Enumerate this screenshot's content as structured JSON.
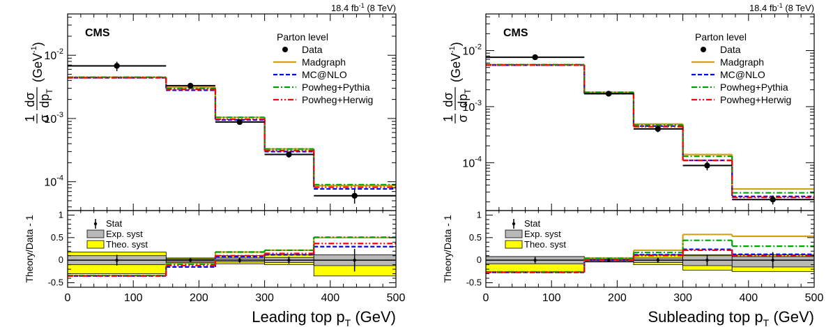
{
  "chart_data": [
    {
      "type": "line",
      "panel": "left",
      "header": "18.4 fb",
      "header_sup": "-1",
      "header_energy": " (8 TeV)",
      "experiment": "CMS",
      "legend_title": "Parton level",
      "ylabel_numerator": "1",
      "ylabel_sigma": "σ",
      "ylabel_dsigma": "dσ",
      "ylabel_dpt": "dp",
      "ylabel_sub": "T",
      "ylabel_units": "(GeV",
      "ylabel_units_sup": "-1",
      "ylabel_units_close": ")",
      "xlabel_main": "Leading top p",
      "xlabel_sub": "T",
      "xlabel_units": " (GeV)",
      "ratio_ylabel": "Theory/Data - 1",
      "yscale": "log",
      "ylim": [
        3.5e-05,
        0.045
      ],
      "xlim": [
        0,
        500
      ],
      "ratio_ylim": [
        -0.6,
        1.1
      ],
      "x_ticks": [
        "0",
        "100",
        "200",
        "300",
        "400",
        "500"
      ],
      "y_ticks": [
        "10^-2",
        "10^-3",
        "10^-4"
      ],
      "ratio_ticks": [
        "-0.5",
        "0",
        "0.5",
        "1"
      ],
      "bin_edges": [
        0,
        150,
        225,
        300,
        375,
        500
      ],
      "data_points": [
        {
          "x": 75,
          "y": 0.0068,
          "yerr_lo": 0.0056,
          "yerr_hi": 0.0079
        },
        {
          "x": 187,
          "y": 0.0033,
          "yerr_lo": 0.003,
          "yerr_hi": 0.0036
        },
        {
          "x": 262,
          "y": 0.00088,
          "yerr_lo": 0.0008,
          "yerr_hi": 0.00097
        },
        {
          "x": 337,
          "y": 0.00027,
          "yerr_lo": 0.00024,
          "yerr_hi": 0.0003
        },
        {
          "x": 437,
          "y": 6e-05,
          "yerr_lo": 4.5e-05,
          "yerr_hi": 7.5e-05
        }
      ],
      "series": [
        {
          "name": "Data",
          "style": "marker",
          "color": "#000000",
          "values": [
            0.0068,
            0.0033,
            0.00088,
            0.00027,
            6e-05
          ]
        },
        {
          "name": "Madgraph",
          "style": "solid",
          "color": "#D4A017",
          "values": [
            0.0045,
            0.0031,
            0.00104,
            0.00033,
            8.7e-05
          ]
        },
        {
          "name": "MC@NLO",
          "style": "dashed",
          "color": "#0000FF",
          "values": [
            0.0044,
            0.0028,
            0.00095,
            0.0003,
            7.7e-05
          ]
        },
        {
          "name": "Powheg+Pythia",
          "style": "dashdot",
          "color": "#00A000",
          "values": [
            0.0045,
            0.003,
            0.00104,
            0.00033,
            9e-05
          ]
        },
        {
          "name": "Powheg+Herwig",
          "style": "dashdotdot",
          "color": "#FF0000",
          "values": [
            0.0044,
            0.0029,
            0.00097,
            0.00031,
            8.2e-05
          ]
        }
      ],
      "data_line": [
        0.0068,
        0.0033,
        0.00088,
        0.00027,
        6e-05
      ],
      "ratio_legend": [
        "Stat",
        "Exp. syst",
        "Theo. syst"
      ],
      "ratio_series": [
        {
          "name": "Madgraph",
          "values": [
            -0.34,
            -0.07,
            0.18,
            0.22,
            0.5
          ]
        },
        {
          "name": "MC@NLO",
          "values": [
            -0.35,
            -0.15,
            0.08,
            0.12,
            0.3
          ]
        },
        {
          "name": "Powheg+Pythia",
          "values": [
            -0.34,
            -0.09,
            0.18,
            0.22,
            0.51
          ]
        },
        {
          "name": "Powheg+Herwig",
          "values": [
            -0.35,
            -0.12,
            0.1,
            0.15,
            0.37
          ]
        }
      ],
      "ratio_points": [
        {
          "x": 75,
          "y": 0,
          "err": 0.12
        },
        {
          "x": 187,
          "y": 0,
          "err": 0.05
        },
        {
          "x": 262,
          "y": 0,
          "err": 0.06
        },
        {
          "x": 337,
          "y": 0,
          "err": 0.08
        },
        {
          "x": 437,
          "y": 0,
          "err": 0.25
        }
      ],
      "theo_syst": [
        [
          -0.3,
          0.18
        ],
        [
          -0.05,
          0.05
        ],
        [
          -0.08,
          0.1
        ],
        [
          -0.1,
          0.12
        ],
        [
          -0.35,
          0.1
        ]
      ],
      "exp_syst": [
        [
          -0.1,
          0.1
        ],
        [
          -0.03,
          0.03
        ],
        [
          -0.04,
          0.05
        ],
        [
          -0.05,
          0.06
        ],
        [
          -0.12,
          0.12
        ]
      ]
    },
    {
      "type": "line",
      "panel": "right",
      "header": "18.4 fb",
      "header_sup": "-1",
      "header_energy": " (8 TeV)",
      "experiment": "CMS",
      "legend_title": "Parton level",
      "ylabel_numerator": "1",
      "ylabel_sigma": "σ",
      "ylabel_dsigma": "dσ",
      "ylabel_dpt": "dp",
      "ylabel_sub": "T",
      "ylabel_units": "(GeV",
      "ylabel_units_sup": "-1",
      "ylabel_units_close": ")",
      "xlabel_main": "Subleading top p",
      "xlabel_sub": "T",
      "xlabel_units": " (GeV)",
      "ratio_ylabel": "Theory/Data - 1",
      "yscale": "log",
      "ylim": [
        1.4e-05,
        0.045
      ],
      "xlim": [
        0,
        500
      ],
      "ratio_ylim": [
        -0.6,
        1.1
      ],
      "x_ticks": [
        "0",
        "100",
        "200",
        "300",
        "400",
        "500"
      ],
      "y_ticks": [
        "10^-2",
        "10^-3",
        "10^-4"
      ],
      "ratio_ticks": [
        "-0.5",
        "0",
        "0.5",
        "1"
      ],
      "bin_edges": [
        0,
        150,
        225,
        300,
        375,
        500
      ],
      "data_points": [
        {
          "x": 75,
          "y": 0.0076,
          "yerr_lo": 0.0071,
          "yerr_hi": 0.0081
        },
        {
          "x": 187,
          "y": 0.0017,
          "yerr_lo": 0.0016,
          "yerr_hi": 0.0018
        },
        {
          "x": 262,
          "y": 0.0004,
          "yerr_lo": 0.00035,
          "yerr_hi": 0.00046
        },
        {
          "x": 337,
          "y": 8.9e-05,
          "yerr_lo": 7.3e-05,
          "yerr_hi": 0.000106
        },
        {
          "x": 437,
          "y": 2.2e-05,
          "yerr_lo": 1.8e-05,
          "yerr_hi": 2.6e-05
        }
      ],
      "series": [
        {
          "name": "Data",
          "style": "marker",
          "color": "#000000",
          "values": [
            0.0076,
            0.0017,
            0.0004,
            8.9e-05,
            2.2e-05
          ]
        },
        {
          "name": "Madgraph",
          "style": "solid",
          "color": "#D4A017",
          "values": [
            0.0056,
            0.0018,
            0.00049,
            0.00014,
            3.4e-05
          ]
        },
        {
          "name": "MC@NLO",
          "style": "dashed",
          "color": "#0000FF",
          "values": [
            0.0055,
            0.0017,
            0.00045,
            0.00011,
            2.5e-05
          ]
        },
        {
          "name": "Powheg+Pythia",
          "style": "dashdot",
          "color": "#00A000",
          "values": [
            0.0056,
            0.0018,
            0.00047,
            0.00013,
            2.9e-05
          ]
        },
        {
          "name": "Powheg+Herwig",
          "style": "dashdotdot",
          "color": "#FF0000",
          "values": [
            0.0055,
            0.0017,
            0.00044,
            0.00011,
            2.4e-05
          ]
        }
      ],
      "data_line": [
        0.0076,
        0.0017,
        0.0004,
        8.9e-05,
        2.2e-05
      ],
      "ratio_legend": [
        "Stat",
        "Exp. syst",
        "Theo. syst"
      ],
      "ratio_series": [
        {
          "name": "Madgraph",
          "values": [
            -0.26,
            0.05,
            0.22,
            0.57,
            0.53
          ]
        },
        {
          "name": "MC@NLO",
          "values": [
            -0.27,
            0.0,
            0.12,
            0.24,
            0.13
          ]
        },
        {
          "name": "Powheg+Pythia",
          "values": [
            -0.26,
            0.04,
            0.17,
            0.44,
            0.31
          ]
        },
        {
          "name": "Powheg+Herwig",
          "values": [
            -0.27,
            0.0,
            0.1,
            0.22,
            0.1
          ]
        }
      ],
      "ratio_points": [
        {
          "x": 75,
          "y": 0,
          "err": 0.07
        },
        {
          "x": 187,
          "y": 0,
          "err": 0.04
        },
        {
          "x": 262,
          "y": 0,
          "err": 0.06
        },
        {
          "x": 337,
          "y": 0,
          "err": 0.12
        },
        {
          "x": 437,
          "y": 0,
          "err": 0.18
        }
      ],
      "theo_syst": [
        [
          -0.27,
          0.08
        ],
        [
          -0.04,
          0.04
        ],
        [
          -0.1,
          0.12
        ],
        [
          -0.22,
          0.12
        ],
        [
          -0.25,
          0.12
        ]
      ],
      "exp_syst": [
        [
          -0.08,
          0.08
        ],
        [
          -0.03,
          0.03
        ],
        [
          -0.05,
          0.05
        ],
        [
          -0.12,
          0.1
        ],
        [
          -0.15,
          0.08
        ]
      ]
    }
  ]
}
